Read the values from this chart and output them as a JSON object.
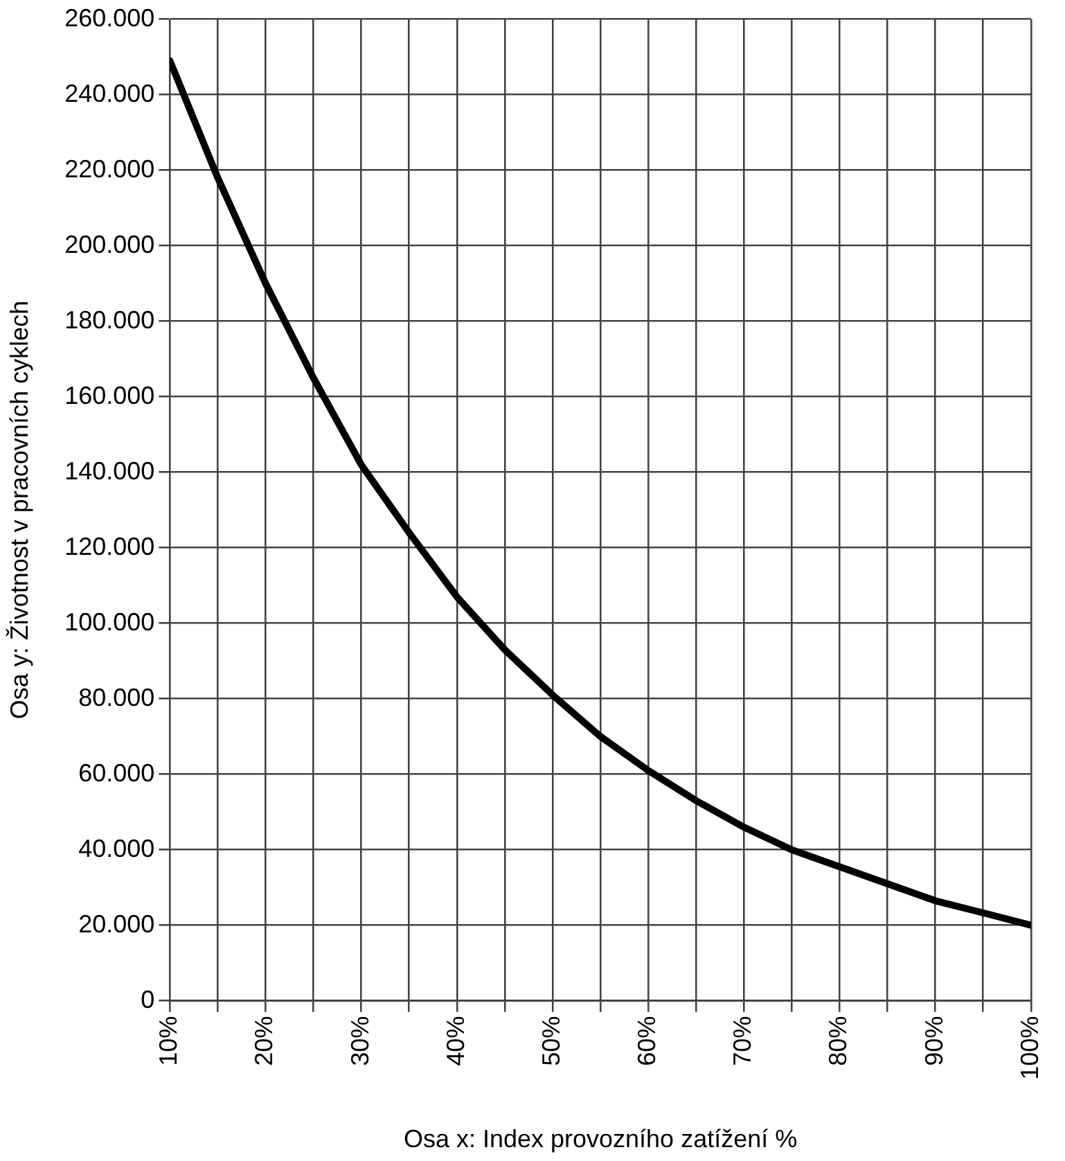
{
  "chart_data": {
    "type": "line",
    "xlabel": "Osa x: Index provozního zatížení %",
    "ylabel": "Osa y: Životnost v pracovních cyklech",
    "x": [
      10,
      15,
      20,
      25,
      30,
      35,
      40,
      45,
      50,
      55,
      60,
      65,
      70,
      75,
      80,
      85,
      90,
      95,
      100
    ],
    "series": [
      {
        "color": "#000000",
        "values": [
          249000,
          218000,
          190000,
          165000,
          142000,
          124000,
          107000,
          93000,
          81000,
          70000,
          61000,
          53000,
          46000,
          40000,
          35500,
          31000,
          26500,
          23300,
          20000
        ]
      }
    ],
    "xlim": [
      10,
      100
    ],
    "xticks": [
      {
        "value": 10,
        "label": "10%"
      },
      {
        "value": 15,
        "label": null
      },
      {
        "value": 20,
        "label": "20%"
      },
      {
        "value": 25,
        "label": null
      },
      {
        "value": 30,
        "label": "30%"
      },
      {
        "value": 35,
        "label": null
      },
      {
        "value": 40,
        "label": "40%"
      },
      {
        "value": 45,
        "label": null
      },
      {
        "value": 50,
        "label": "50%"
      },
      {
        "value": 55,
        "label": null
      },
      {
        "value": 60,
        "label": "60%"
      },
      {
        "value": 65,
        "label": null
      },
      {
        "value": 70,
        "label": "70%"
      },
      {
        "value": 75,
        "label": null
      },
      {
        "value": 80,
        "label": "80%"
      },
      {
        "value": 85,
        "label": null
      },
      {
        "value": 90,
        "label": "90%"
      },
      {
        "value": 95,
        "label": null
      },
      {
        "value": 100,
        "label": "100%"
      }
    ],
    "ylim": [
      0,
      260000
    ],
    "yticks": [
      {
        "value": 0,
        "label": "0"
      },
      {
        "value": 20000,
        "label": "20.000"
      },
      {
        "value": 40000,
        "label": "40.000"
      },
      {
        "value": 60000,
        "label": "60.000"
      },
      {
        "value": 80000,
        "label": "80.000"
      },
      {
        "value": 100000,
        "label": "100.000"
      },
      {
        "value": 120000,
        "label": "120.000"
      },
      {
        "value": 140000,
        "label": "140.000"
      },
      {
        "value": 160000,
        "label": "160.000"
      },
      {
        "value": 180000,
        "label": "180.000"
      },
      {
        "value": 200000,
        "label": "200.000"
      },
      {
        "value": 220000,
        "label": "220.000"
      },
      {
        "value": 240000,
        "label": "240.000"
      },
      {
        "value": 260000,
        "label": "260.000"
      }
    ],
    "grid": true,
    "legend": false,
    "marker": "none",
    "line_style": "solid"
  }
}
